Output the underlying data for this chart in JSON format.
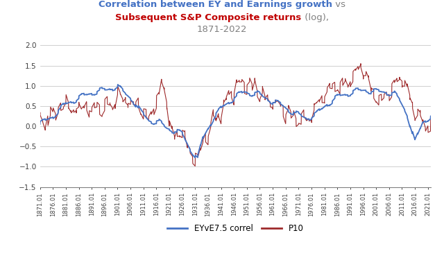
{
  "title_line1_blue": "Correlation between EY and Earnings growth",
  "title_line1_gray": " vs",
  "title_line2_red": "Subsequent S&P Composite returns",
  "title_line2_gray": " (log),",
  "title_line3": "1871-2022",
  "legend_blue": "EYvE7.5 correl",
  "legend_red": "P10",
  "ylim": [
    -1.5,
    2.0
  ],
  "yticks": [
    -1.5,
    -1.0,
    -0.5,
    0.0,
    0.5,
    1.0,
    1.5,
    2.0
  ],
  "blue_color": "#4472C4",
  "red_color": "#9E2A2B",
  "bg_color": "#FFFFFF",
  "grid_color": "#C8C8C8",
  "title_blue_color": "#4472C4",
  "title_red_color": "#C00000",
  "title_gray_color": "#808080",
  "tick_label_color": "#404040",
  "xtick_step_years": 5,
  "start_year": 1871,
  "end_year": 2022
}
